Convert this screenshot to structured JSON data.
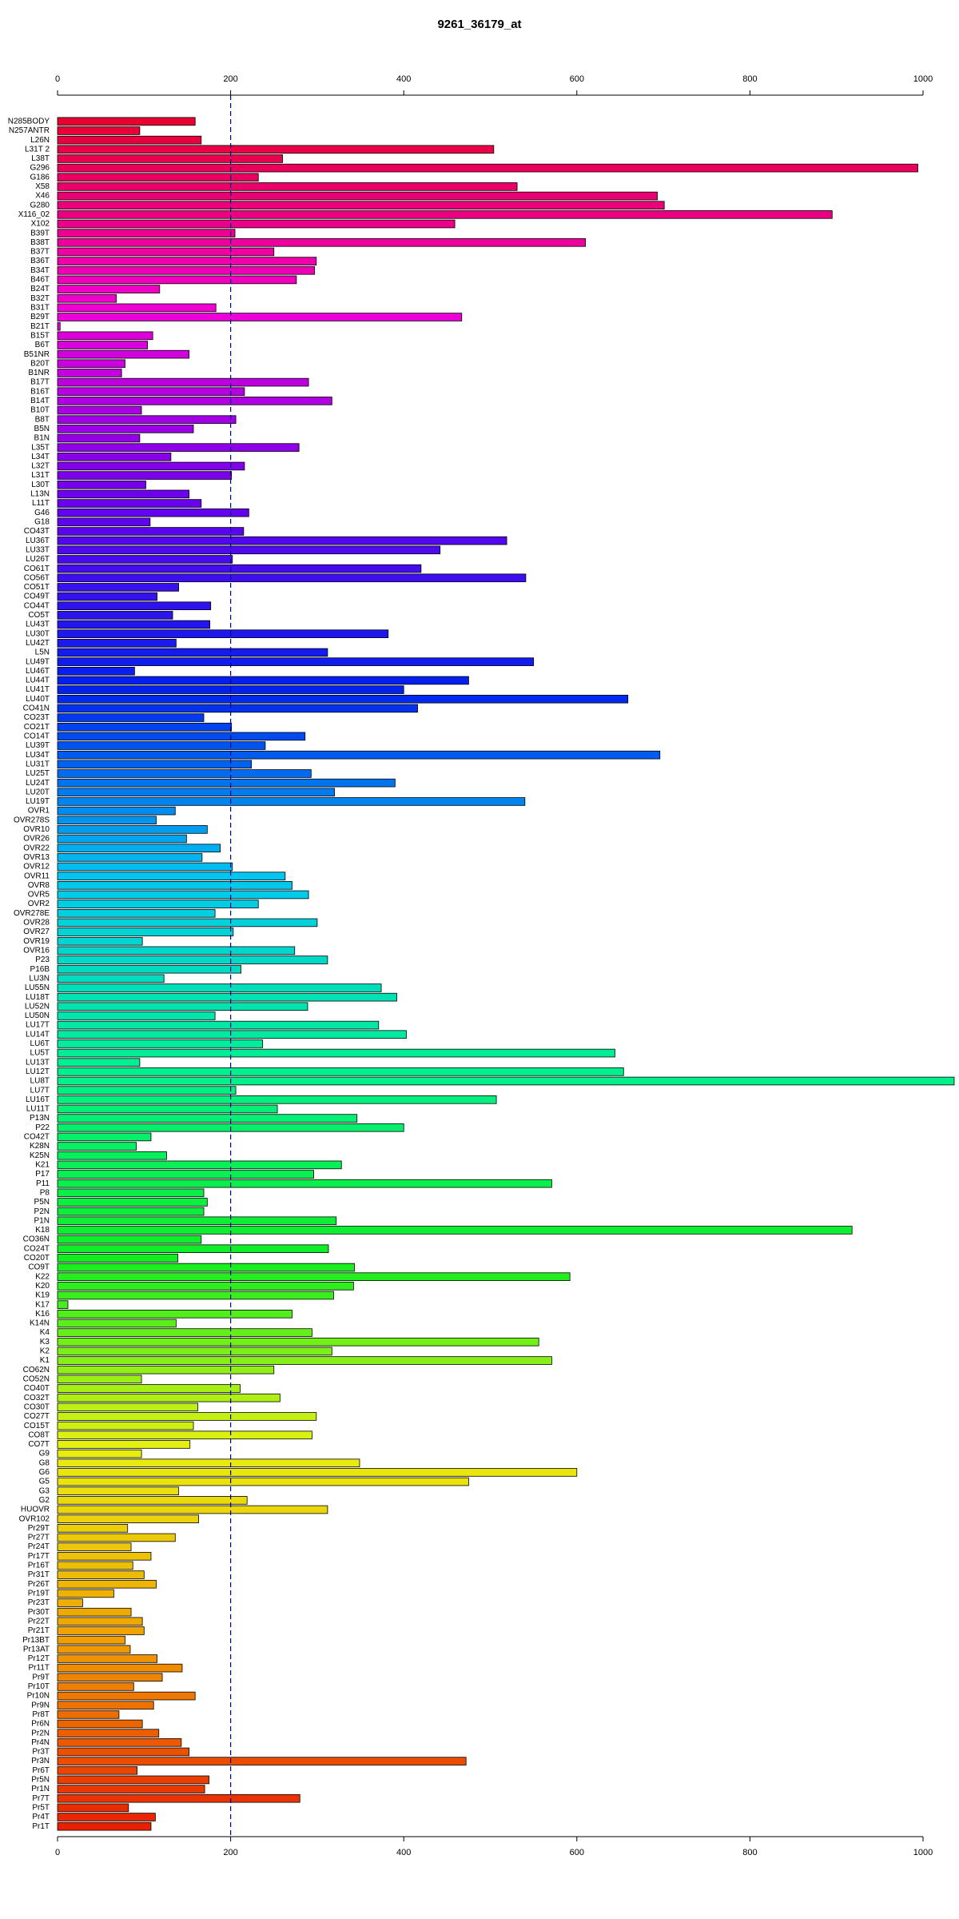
{
  "chart_data": {
    "type": "barh",
    "title": "9261_36179_at",
    "categories": [
      "N285BODY",
      "N257ANTR",
      "L26N",
      "L31T 2",
      "L38T",
      "G296",
      "G186",
      "X58",
      "X46",
      "G280",
      "X116_02",
      "X102",
      "B39T",
      "B38T",
      "B37T",
      "B36T",
      "B34T",
      "B46T",
      "B24T",
      "B32T",
      "B31T",
      "B29T",
      "B21T",
      "B15T",
      "B6T",
      "B51NR",
      "B20T",
      "B1NR",
      "B17T",
      "B16T",
      "B14T",
      "B10T",
      "B8T",
      "B5N",
      "B1N",
      "L35T",
      "L34T",
      "L32T",
      "L31T",
      "L30T",
      "L13N",
      "L11T",
      "G46",
      "G18",
      "CO43T",
      "LU36T",
      "LU33T",
      "LU26T",
      "CO61T",
      "CO56T",
      "CO51T",
      "CO49T",
      "CO44T",
      "CO5T",
      "LU43T",
      "LU30T",
      "LU42T",
      "L5N",
      "LU49T",
      "LU46T",
      "LU44T",
      "LU41T",
      "LU40T",
      "CO41N",
      "CO23T",
      "CO21T",
      "CO14T",
      "LU39T",
      "LU34T",
      "LU31T",
      "LU25T",
      "LU24T",
      "LU20T",
      "LU19T",
      "OVR1",
      "OVR278S",
      "OVR10",
      "OVR26",
      "OVR22",
      "OVR13",
      "OVR12",
      "OVR11",
      "OVR8",
      "OVR5",
      "OVR2",
      "OVR278E",
      "OVR28",
      "OVR27",
      "OVR19",
      "OVR16",
      "P23",
      "P16B",
      "LU3N",
      "LU55N",
      "LU18T",
      "LU52N",
      "LU50N",
      "LU17T",
      "LU14T",
      "LU6T",
      "LU5T",
      "LU13T",
      "LU12T",
      "LU8T",
      "LU7T",
      "LU16T",
      "LU11T",
      "P13N",
      "P22",
      "CO42T",
      "K28N",
      "K25N",
      "K21",
      "P17",
      "P11",
      "P8",
      "P5N",
      "P2N",
      "P1N",
      "K18",
      "CO36N",
      "CO24T",
      "CO20T",
      "CO9T",
      "K22",
      "K20",
      "K19",
      "K17",
      "K16",
      "K14N",
      "K4",
      "K3",
      "K2",
      "K1",
      "CO62N",
      "CO52N",
      "CO40T",
      "CO32T",
      "CO30T",
      "CO27T",
      "CO15T",
      "CO8T",
      "CO7T",
      "G9",
      "G8",
      "G6",
      "G5",
      "G3",
      "G2",
      "HUOVR",
      "OVR102",
      "Pr29T",
      "Pr27T",
      "Pr24T",
      "Pr17T",
      "Pr16T",
      "Pr31T",
      "Pr26T",
      "Pr19T",
      "Pr23T",
      "Pr30T",
      "Pr22T",
      "Pr21T",
      "Pr13BT",
      "Pr13AT",
      "Pr12T",
      "Pr11T",
      "Pr9T",
      "Pr10T",
      "Pr10N",
      "Pr9N",
      "Pr8T",
      "Pr6N",
      "Pr2N",
      "Pr4N",
      "Pr3T",
      "Pr3N",
      "Pr6T",
      "Pr5N",
      "Pr1N",
      "Pr7T",
      "Pr5T",
      "Pr4T",
      "Pr1T"
    ],
    "values": [
      159,
      95,
      166,
      504,
      260,
      994,
      232,
      531,
      693,
      701,
      895,
      459,
      205,
      610,
      250,
      299,
      297,
      276,
      118,
      68,
      183,
      467,
      3,
      110,
      104,
      152,
      78,
      74,
      290,
      216,
      317,
      97,
      206,
      157,
      95,
      279,
      131,
      216,
      201,
      102,
      152,
      166,
      221,
      107,
      215,
      519,
      442,
      202,
      420,
      541,
      140,
      115,
      177,
      133,
      176,
      382,
      137,
      312,
      550,
      89,
      475,
      400,
      659,
      416,
      169,
      201,
      286,
      240,
      696,
      224,
      293,
      390,
      320,
      540,
      136,
      114,
      173,
      149,
      188,
      167,
      202,
      263,
      271,
      290,
      232,
      182,
      300,
      203,
      98,
      274,
      312,
      212,
      123,
      374,
      392,
      289,
      182,
      371,
      403,
      237,
      644,
      95,
      654,
      1036,
      206,
      507,
      254,
      346,
      400,
      108,
      91,
      126,
      328,
      296,
      571,
      169,
      173,
      169,
      322,
      918,
      166,
      313,
      139,
      343,
      592,
      342,
      319,
      12,
      271,
      137,
      294,
      556,
      317,
      571,
      250,
      97,
      211,
      257,
      162,
      299,
      157,
      294,
      153,
      97,
      349,
      600,
      475,
      140,
      219,
      312,
      163,
      81,
      136,
      85,
      108,
      87,
      100,
      114,
      65,
      29,
      85,
      98,
      100,
      78,
      84,
      115,
      144,
      121,
      88,
      159,
      111,
      71,
      98,
      117,
      143,
      152,
      472,
      92,
      175,
      170,
      280,
      82,
      113,
      108
    ],
    "color_scale": [
      "#e8002e",
      "#f000d8",
      "#6a00ee",
      "#0022ee",
      "#00c8f0",
      "#00f090",
      "#10ee20",
      "#e8f010",
      "#f0a000",
      "#e82000"
    ],
    "xlim": [
      0,
      1000
    ],
    "xticks": [
      0,
      200,
      400,
      600,
      800,
      1000
    ],
    "reference_line": 200,
    "reference_color": "#00008b"
  }
}
